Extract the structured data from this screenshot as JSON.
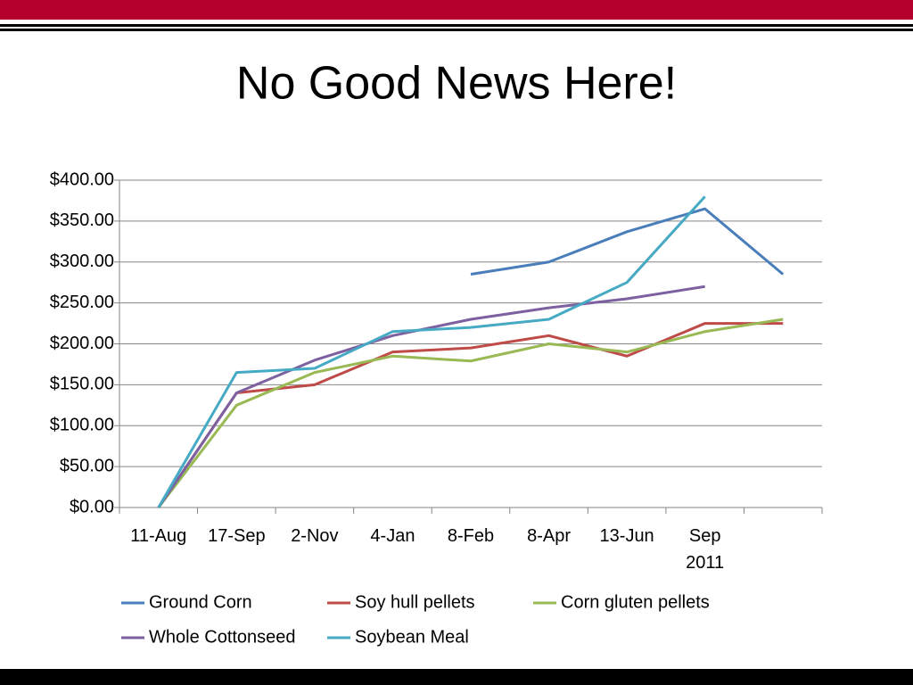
{
  "chart_data": {
    "type": "line",
    "title": "No Good News Here!",
    "categories": [
      "11-Aug",
      "17-Sep",
      "2-Nov",
      "4-Jan",
      "8-Feb",
      "8-Apr",
      "13-Jun",
      "Sep\n2011",
      null
    ],
    "series": [
      {
        "name": "Ground Corn",
        "color": "#4a7ebb",
        "values": [
          null,
          null,
          null,
          null,
          285,
          300,
          337,
          365,
          285
        ]
      },
      {
        "name": "Soy hull pellets",
        "color": "#be4b48",
        "values": [
          0,
          140,
          150,
          190,
          195,
          210,
          185,
          225,
          225
        ]
      },
      {
        "name": "Corn gluten pellets",
        "color": "#98b954",
        "values": [
          0,
          125,
          165,
          185,
          179,
          200,
          190,
          215,
          230
        ]
      },
      {
        "name": "Whole Cottonseed",
        "color": "#7d60a0",
        "values": [
          0,
          140,
          180,
          210,
          230,
          244,
          255,
          270,
          null
        ]
      },
      {
        "name": "Soybean Meal",
        "color": "#46aac5",
        "values": [
          0,
          165,
          170,
          215,
          220,
          230,
          275,
          380,
          null
        ]
      }
    ],
    "ylim": [
      0,
      400
    ],
    "yticks": [
      {
        "value": 0,
        "label": "$0.00"
      },
      {
        "value": 50,
        "label": "$50.00"
      },
      {
        "value": 100,
        "label": "$100.00"
      },
      {
        "value": 150,
        "label": "$150.00"
      },
      {
        "value": 200,
        "label": "$200.00"
      },
      {
        "value": 250,
        "label": "$250.00"
      },
      {
        "value": 300,
        "label": "$300.00"
      },
      {
        "value": 350,
        "label": "$350.00"
      },
      {
        "value": 400,
        "label": "$400.00"
      }
    ],
    "grid": true
  }
}
